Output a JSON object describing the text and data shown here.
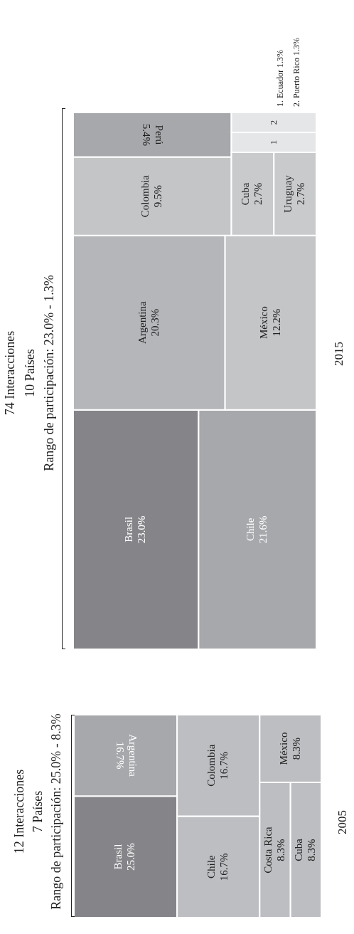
{
  "chart_data": [
    {
      "type": "other",
      "title": "74 Interacciones",
      "subtitle": "10 Países",
      "xlabel": "2015",
      "categories": [
        "Brasil",
        "Chile",
        "Argentina",
        "México",
        "Colombia",
        "Perú",
        "Cuba",
        "Uruguay",
        "Ecuador",
        "Puerto Rico"
      ],
      "values": [
        23.0,
        21.6,
        20.3,
        12.2,
        9.5,
        5.4,
        2.7,
        2.7,
        1.3,
        1.3
      ],
      "value_labels": [
        "23.0%",
        "21.6%",
        "20.3%",
        "12.2%",
        "9.5%",
        "5.4%",
        "2.7%",
        "2.7%",
        "1.3%",
        "1.3%"
      ],
      "colors": [
        "#858589",
        "#a7a8ab",
        "#b5b6b9",
        "#c4c5c7",
        "#c4c5c7",
        "#a7a8ab",
        "#c9cacc",
        "#c9cacc",
        "#e5e6e7",
        "#e5e6e7"
      ],
      "annotations": [
        "Rango de participación: 23.0% - 1.3%",
        "1",
        "1.",
        "2",
        "2."
      ]
    },
    {
      "type": "other",
      "title": "12 Interacciones",
      "subtitle": "7 Países",
      "xlabel": "2005",
      "categories": [
        "Brasil",
        "Argentina",
        "Chile",
        "Colombia",
        "Costa Rica",
        "Cuba",
        "México"
      ],
      "values": [
        25.0,
        16.7,
        16.7,
        16.7,
        8.3,
        8.3,
        8.3
      ],
      "value_labels": [
        "25.0%",
        "16.7%",
        "16.7%",
        "16.7%",
        "8.3%",
        "8.3%",
        "8.3%"
      ],
      "colors": [
        "#858589",
        "#a7a8ab",
        "#bdbec1",
        "#bdbec1",
        "#bdbec1",
        "#bdbec1",
        "#bdbec1"
      ],
      "annotations": [
        "Rango de participación: 25.0% - 8.3%"
      ]
    }
  ]
}
